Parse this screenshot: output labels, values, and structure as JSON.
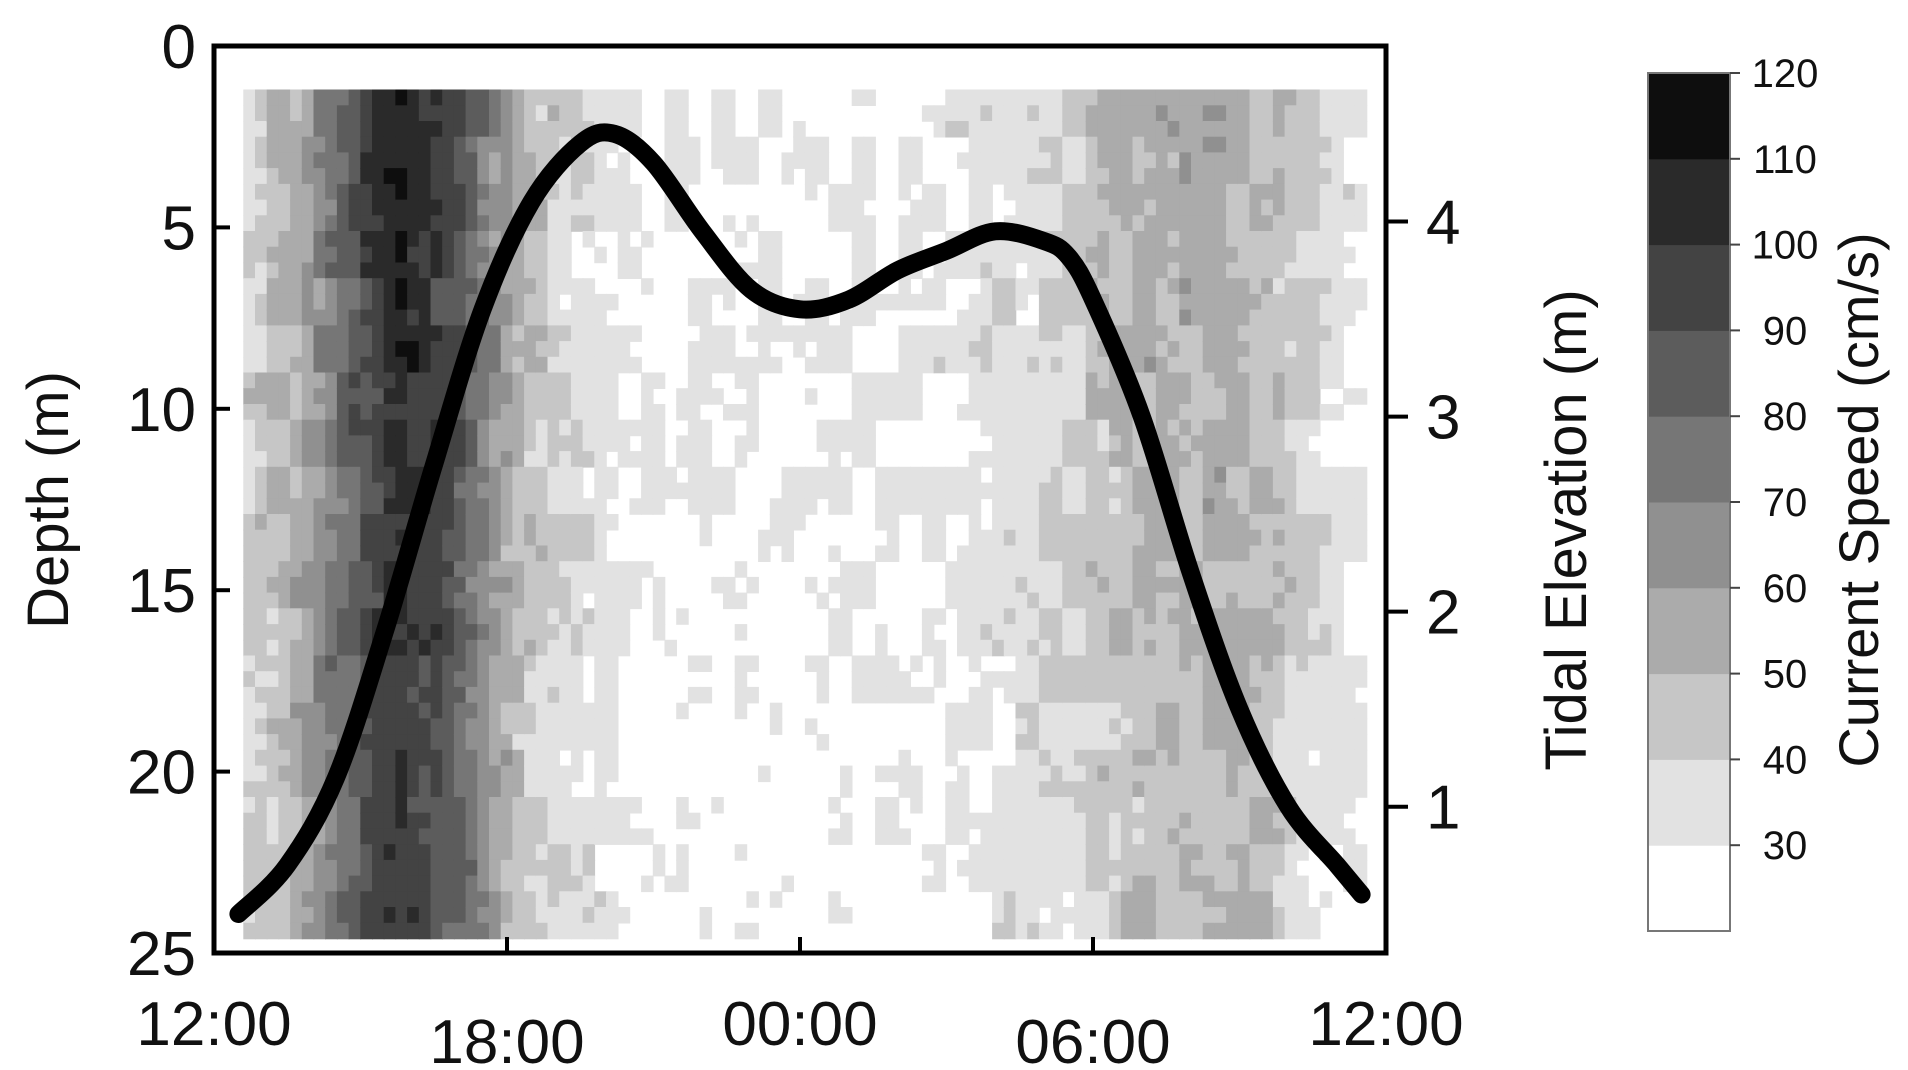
{
  "chart_data": {
    "type": "heatmap",
    "title": "",
    "x_axis": {
      "ticks": [
        "12:00",
        "18:00",
        "00:00",
        "06:00",
        "12:00"
      ],
      "range_hours": [
        0,
        24
      ]
    },
    "y_axis_left": {
      "label": "Depth (m)",
      "ticks": [
        0,
        5,
        10,
        15,
        20,
        25
      ],
      "range": [
        0,
        25
      ],
      "inverted": true
    },
    "y_axis_right": {
      "label": "Tidal Elevation (m)",
      "ticks": [
        1,
        2,
        3,
        4
      ],
      "range": [
        0.25,
        4.9
      ]
    },
    "colorbar": {
      "label": "Current Speed (cm/s)",
      "ticks": [
        30,
        40,
        50,
        60,
        70,
        80,
        90,
        100,
        110,
        120
      ],
      "bands": [
        {
          "min": 20,
          "max": 30,
          "color": "#ffffff"
        },
        {
          "min": 30,
          "max": 40,
          "color": "#e2e2e2"
        },
        {
          "min": 40,
          "max": 50,
          "color": "#c6c6c6"
        },
        {
          "min": 50,
          "max": 60,
          "color": "#ababab"
        },
        {
          "min": 60,
          "max": 70,
          "color": "#909090"
        },
        {
          "min": 70,
          "max": 80,
          "color": "#767676"
        },
        {
          "min": 80,
          "max": 90,
          "color": "#5c5c5c"
        },
        {
          "min": 90,
          "max": 100,
          "color": "#434343"
        },
        {
          "min": 100,
          "max": 110,
          "color": "#2a2a2a"
        },
        {
          "min": 110,
          "max": 120,
          "color": "#0e0e0e"
        }
      ]
    },
    "data_extent": {
      "hours": [
        0.6,
        23.6
      ],
      "depth_m": [
        1.2,
        24.6
      ]
    },
    "current_speed_profile": {
      "hours": [
        0.6,
        1.6,
        2.6,
        3.2,
        3.8,
        4.4,
        5.0,
        5.6,
        6.2,
        7.2,
        8.2,
        9.2,
        10.5,
        12.0,
        13.5,
        15.0,
        16.5,
        17.5,
        18.3,
        19.0,
        19.8,
        20.8,
        21.6,
        22.4,
        23.6
      ],
      "speed_cms": [
        42,
        55,
        82,
        100,
        110,
        104,
        92,
        72,
        52,
        40,
        32,
        28,
        28,
        30,
        30,
        32,
        38,
        42,
        48,
        54,
        56,
        55,
        52,
        40,
        30
      ]
    },
    "tidal_elevation_series": {
      "hours": [
        0.5,
        1.5,
        2.5,
        3.5,
        4.5,
        5.5,
        6.5,
        7.5,
        8.2,
        9.0,
        10.0,
        11.0,
        12.0,
        13.0,
        14.0,
        15.0,
        16.0,
        17.0,
        17.5,
        18.0,
        19.0,
        20.0,
        21.0,
        22.0,
        23.0,
        23.5
      ],
      "elevation_m": [
        0.45,
        0.7,
        1.15,
        1.9,
        2.75,
        3.55,
        4.1,
        4.4,
        4.45,
        4.3,
        3.95,
        3.65,
        3.55,
        3.6,
        3.75,
        3.85,
        3.95,
        3.9,
        3.82,
        3.6,
        3.0,
        2.2,
        1.5,
        1.0,
        0.7,
        0.55
      ]
    }
  }
}
